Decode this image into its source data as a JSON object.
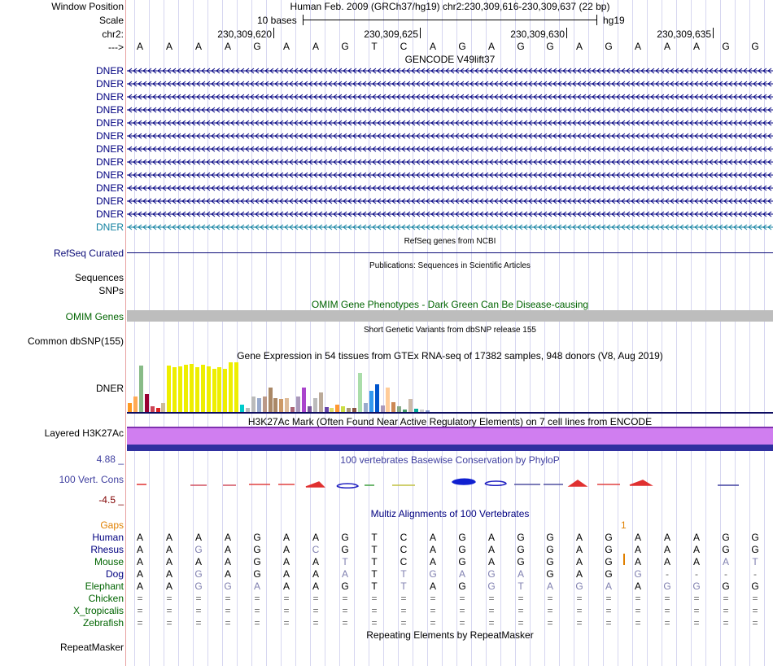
{
  "header": {
    "window_position_label": "Window Position",
    "window_position_text": "Human Feb. 2009 (GRCh37/hg19)   chr2:230,309,616-230,309,637 (22 bp)",
    "scale_label": "Scale",
    "scale_text": "10 bases",
    "scale_assembly": "hg19",
    "chrom_label": "chr2:",
    "arrow_label": "--->",
    "coordinates": [
      "230,309,620",
      "230,309,625",
      "230,309,630",
      "230,309,635"
    ],
    "sequence": [
      "A",
      "A",
      "A",
      "A",
      "G",
      "A",
      "A",
      "G",
      "T",
      "C",
      "A",
      "G",
      "A",
      "G",
      "G",
      "A",
      "G",
      "A",
      "A",
      "A",
      "G",
      "G"
    ]
  },
  "gencode": {
    "title": "GENCODE V49lift37",
    "rows": [
      {
        "label": "DNER",
        "color": "#000080"
      },
      {
        "label": "DNER",
        "color": "#000080"
      },
      {
        "label": "DNER",
        "color": "#000080"
      },
      {
        "label": "DNER",
        "color": "#000080"
      },
      {
        "label": "DNER",
        "color": "#000080"
      },
      {
        "label": "DNER",
        "color": "#000080"
      },
      {
        "label": "DNER",
        "color": "#000080"
      },
      {
        "label": "DNER",
        "color": "#000080"
      },
      {
        "label": "DNER",
        "color": "#000080"
      },
      {
        "label": "DNER",
        "color": "#000080"
      },
      {
        "label": "DNER",
        "color": "#000080"
      },
      {
        "label": "DNER",
        "color": "#000080"
      },
      {
        "label": "DNER",
        "color": "#1080a0"
      }
    ]
  },
  "refseq": {
    "title": "RefSeq genes from NCBI",
    "label": "RefSeq Curated",
    "color": "#0c0c78"
  },
  "publications": {
    "title": "Publications: Sequences in Scientific Articles",
    "label_sequences": "Sequences",
    "label_snps": "SNPs"
  },
  "omim": {
    "title": "OMIM Gene Phenotypes - Dark Green Can Be Disease-causing",
    "label": "OMIM Genes",
    "color": "#006400",
    "bar_color": "#bdbdbd"
  },
  "dbsnp": {
    "title": "Short Genetic Variants from dbSNP release 155",
    "label": "Common dbSNP(155)"
  },
  "gtex": {
    "title": "Gene Expression in 54 tissues from GTEx RNA-seq of 17382 samples, 948 donors (V8, Aug 2019)",
    "label": "DNER",
    "bars": [
      {
        "value": 0.18,
        "color": "#ff9922"
      },
      {
        "value": 0.3,
        "color": "#ffaa55"
      },
      {
        "value": 0.92,
        "color": "#88bb88"
      },
      {
        "value": 0.35,
        "color": "#990033"
      },
      {
        "value": 0.12,
        "color": "#cc4455"
      },
      {
        "value": 0.08,
        "color": "#dd2222"
      },
      {
        "value": 0.18,
        "color": "#ccbb99"
      },
      {
        "value": 0.92,
        "color": "#eeee00"
      },
      {
        "value": 0.88,
        "color": "#eeee00"
      },
      {
        "value": 0.9,
        "color": "#eeee00"
      },
      {
        "value": 0.93,
        "color": "#eeee00"
      },
      {
        "value": 0.95,
        "color": "#eeee00"
      },
      {
        "value": 0.88,
        "color": "#eeee00"
      },
      {
        "value": 0.94,
        "color": "#eeee00"
      },
      {
        "value": 0.9,
        "color": "#eeee00"
      },
      {
        "value": 0.85,
        "color": "#eeee00"
      },
      {
        "value": 0.88,
        "color": "#eeee00"
      },
      {
        "value": 0.85,
        "color": "#eeee00"
      },
      {
        "value": 0.98,
        "color": "#eeee00"
      },
      {
        "value": 0.98,
        "color": "#eeee00"
      },
      {
        "value": 0.15,
        "color": "#00cccc"
      },
      {
        "value": 0.08,
        "color": "#bbbbbb"
      },
      {
        "value": 0.3,
        "color": "#bbbbbb"
      },
      {
        "value": 0.28,
        "color": "#99aacc"
      },
      {
        "value": 0.3,
        "color": "#bb9988"
      },
      {
        "value": 0.48,
        "color": "#aa8866"
      },
      {
        "value": 0.28,
        "color": "#aa8866"
      },
      {
        "value": 0.25,
        "color": "#cc9966"
      },
      {
        "value": 0.28,
        "color": "#ddbb99"
      },
      {
        "value": 0.1,
        "color": "#aa6677"
      },
      {
        "value": 0.3,
        "color": "#aa99bb"
      },
      {
        "value": 0.48,
        "color": "#aa44cc"
      },
      {
        "value": 0.12,
        "color": "#775599"
      },
      {
        "value": 0.28,
        "color": "#bbbbbb"
      },
      {
        "value": 0.38,
        "color": "#bbaa99"
      },
      {
        "value": 0.1,
        "color": "#6644aa"
      },
      {
        "value": 0.08,
        "color": "#dddd66"
      },
      {
        "value": 0.15,
        "color": "#ff9933"
      },
      {
        "value": 0.12,
        "color": "#ccdd44"
      },
      {
        "value": 0.08,
        "color": "#aa9977"
      },
      {
        "value": 0.08,
        "color": "#885544"
      },
      {
        "value": 0.78,
        "color": "#aaddaa"
      },
      {
        "value": 0.18,
        "color": "#99aacc"
      },
      {
        "value": 0.42,
        "color": "#3399ee"
      },
      {
        "value": 0.55,
        "color": "#0055cc"
      },
      {
        "value": 0.13,
        "color": "#aa99bb"
      },
      {
        "value": 0.48,
        "color": "#ffcc99"
      },
      {
        "value": 0.2,
        "color": "#cc8855"
      },
      {
        "value": 0.12,
        "color": "#88aa88"
      },
      {
        "value": 0.05,
        "color": "#449966"
      },
      {
        "value": 0.25,
        "color": "#ccbbaa"
      },
      {
        "value": 0.06,
        "color": "#00aa99"
      },
      {
        "value": 0.05,
        "color": "#cccccc"
      },
      {
        "value": 0.04,
        "color": "#8899cc"
      }
    ]
  },
  "h3k27ac": {
    "title": "H3K27Ac Mark (Often Found Near Active Regulatory Elements) on 7 cell lines from ENCODE",
    "label": "Layered H3K27Ac",
    "fill_color": "#d07ef0",
    "border_color": "#8030b0",
    "bottom_color": "#3030a0"
  },
  "phylop": {
    "title": "100 vertebrates Basewise Conservation by PhyloP",
    "label": "100 Vert. Cons",
    "max_label": "4.88 _",
    "min_label": "-4.5 _",
    "color": "#4040a0"
  },
  "multiz": {
    "title": "Multiz Alignments of 100 Vertebrates",
    "gaps_label": "Gaps",
    "gaps_marker": "1",
    "species": [
      {
        "name": "Human",
        "color": "#000080",
        "bases": [
          "A",
          "A",
          "A",
          "A",
          "G",
          "A",
          "A",
          "G",
          "T",
          "C",
          "A",
          "G",
          "A",
          "G",
          "G",
          "A",
          "G",
          "A",
          "A",
          "A",
          "G",
          "G"
        ]
      },
      {
        "name": "Rhesus",
        "color": "#000080",
        "bases": [
          "A",
          "A",
          "G",
          "A",
          "G",
          "A",
          "C",
          "G",
          "T",
          "C",
          "A",
          "G",
          "A",
          "G",
          "G",
          "A",
          "G",
          "A",
          "A",
          "A",
          "G",
          "G"
        ]
      },
      {
        "name": "Mouse",
        "color": "#006400",
        "bases": [
          "A",
          "A",
          "A",
          "A",
          "G",
          "A",
          "A",
          "T",
          "T",
          "C",
          "A",
          "G",
          "A",
          "G",
          "G",
          "A",
          "G",
          "A",
          "A",
          "A",
          "A",
          "T"
        ]
      },
      {
        "name": "Dog",
        "color": "#000080",
        "bases": [
          "A",
          "A",
          "G",
          "A",
          "G",
          "A",
          "A",
          "A",
          "T",
          "T",
          "G",
          "A",
          "G",
          "A",
          "G",
          "A",
          "G",
          "G",
          "-",
          "-",
          "-",
          "-"
        ]
      },
      {
        "name": "Elephant",
        "color": "#006400",
        "bases": [
          "A",
          "A",
          "G",
          "G",
          "A",
          "A",
          "A",
          "G",
          "T",
          "T",
          "A",
          "G",
          "G",
          "T",
          "A",
          "G",
          "A",
          "A",
          "G",
          "G",
          "G",
          "G"
        ]
      },
      {
        "name": "Chicken",
        "color": "#006400",
        "bases": [
          "=",
          "=",
          "=",
          "=",
          "=",
          "=",
          "=",
          "=",
          "=",
          "=",
          "=",
          "=",
          "=",
          "=",
          "=",
          "=",
          "=",
          "=",
          "=",
          "=",
          "=",
          "="
        ]
      },
      {
        "name": "X_tropicalis",
        "color": "#006400",
        "bases": [
          "=",
          "=",
          "=",
          "=",
          "=",
          "=",
          "=",
          "=",
          "=",
          "=",
          "=",
          "=",
          "=",
          "=",
          "=",
          "=",
          "=",
          "=",
          "=",
          "=",
          "=",
          "="
        ]
      },
      {
        "name": "Zebrafish",
        "color": "#006400",
        "bases": [
          "=",
          "=",
          "=",
          "=",
          "=",
          "=",
          "=",
          "=",
          "=",
          "=",
          "=",
          "=",
          "=",
          "=",
          "=",
          "=",
          "=",
          "=",
          "=",
          "=",
          "=",
          "="
        ]
      }
    ]
  },
  "repeatmasker": {
    "title": "Repeating Elements by RepeatMasker",
    "label": "RepeatMasker"
  }
}
